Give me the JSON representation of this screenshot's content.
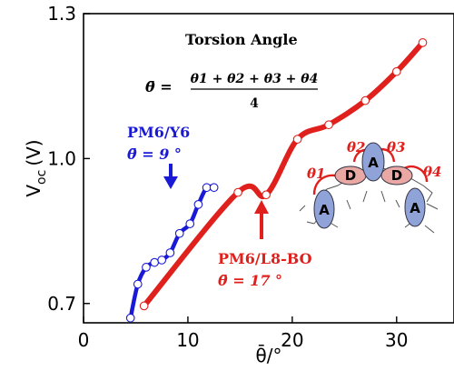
{
  "chart_data": {
    "type": "line",
    "xlabel": "θ̄/°",
    "ylabel": "V",
    "ylabel_sub": "oc",
    "ylabel_unit": "(V)",
    "xlim": [
      0,
      35.5
    ],
    "ylim": [
      0.66,
      1.3
    ],
    "xticks": [
      0,
      10,
      20,
      30
    ],
    "yticks": [
      0.7,
      1.0,
      1.3
    ],
    "xtick_labels": [
      "0",
      "10",
      "20",
      "30"
    ],
    "ytick_labels": [
      "0.7",
      "1.0",
      "1.3"
    ],
    "grid": false,
    "series": [
      {
        "name": "PM6/Y6",
        "color": "#1a1ad6",
        "x": [
          4.5,
          5.2,
          6.0,
          6.8,
          7.5,
          8.3,
          9.2,
          10.2,
          11.0,
          11.8,
          12.5
        ],
        "y": [
          0.67,
          0.74,
          0.775,
          0.785,
          0.79,
          0.805,
          0.845,
          0.865,
          0.905,
          0.94,
          0.94
        ]
      },
      {
        "name": "PM6/L8-BO",
        "color": "#e0201c",
        "x": [
          5.8,
          14.8,
          17.5,
          20.5,
          23.5,
          27.0,
          30.0,
          32.5
        ],
        "y": [
          0.695,
          0.93,
          0.925,
          1.04,
          1.07,
          1.12,
          1.18,
          1.24
        ]
      }
    ]
  },
  "annotations": {
    "torsion_title": "Torsion Angle",
    "formula_lhs": "θ̄ =",
    "formula_numerator": "θ1 + θ2 + θ3 + θ4",
    "formula_denominator": "4",
    "y6_name": "PM6/Y6",
    "y6_angle": "θ̄ = 9 °",
    "l8_name": "PM6/L8-BO",
    "l8_angle": "θ̄ = 17 °"
  },
  "molecule": {
    "acceptor_label": "A",
    "donor_label": "D",
    "theta_labels": [
      "θ1",
      "θ2",
      "θ3",
      "θ4"
    ]
  }
}
